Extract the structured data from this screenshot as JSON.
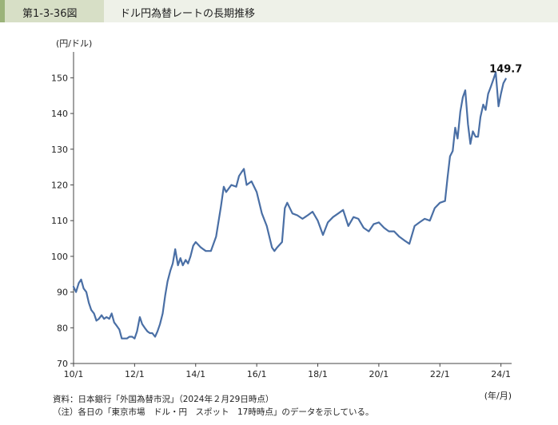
{
  "header": {
    "figure_number": "第1-3-36図",
    "title": "ドル円為替レートの長期推移"
  },
  "source_text": "資料：日本銀行「外国為替市況」（2024年２月29日時点）",
  "note_text": "（注）各日の「東京市場　ドル・円　スポット　17時時点」のデータを示している。",
  "colors": {
    "line": "#4a6fa5",
    "axis": "#444444",
    "header_bg": "#eef1e8",
    "header_tab": "#d7dfc6"
  },
  "chart_data": {
    "type": "line",
    "ylabel": "(円/ドル)",
    "xlabel": "(年/月)",
    "ylim": [
      70,
      155
    ],
    "yticks": [
      70,
      80,
      90,
      100,
      110,
      120,
      130,
      140,
      150
    ],
    "xlim": [
      2010.0,
      2024.35
    ],
    "xticks": [
      {
        "label": "10/1",
        "x": 2010.0
      },
      {
        "label": "12/1",
        "x": 2012.0
      },
      {
        "label": "14/1",
        "x": 2014.0
      },
      {
        "label": "16/1",
        "x": 2016.0
      },
      {
        "label": "18/1",
        "x": 2018.0
      },
      {
        "label": "20/1",
        "x": 2020.0
      },
      {
        "label": "22/1",
        "x": 2022.0
      },
      {
        "label": "24/1",
        "x": 2024.0
      }
    ],
    "grid": false,
    "annotation": {
      "text": "149.7",
      "x": 2024.16,
      "y": 149.7
    },
    "series": [
      {
        "x": [
          2010.0,
          2010.08,
          2010.17,
          2010.25,
          2010.33,
          2010.42,
          2010.5,
          2010.58,
          2010.67,
          2010.75,
          2010.83,
          2010.92,
          2011.0,
          2011.08,
          2011.17,
          2011.25,
          2011.33,
          2011.42,
          2011.5,
          2011.58,
          2011.67,
          2011.75,
          2011.83,
          2011.92,
          2012.0,
          2012.08,
          2012.17,
          2012.25,
          2012.33,
          2012.42,
          2012.5,
          2012.58,
          2012.67,
          2012.75,
          2012.83,
          2012.92,
          2013.0,
          2013.08,
          2013.17,
          2013.25,
          2013.33,
          2013.42,
          2013.5,
          2013.58,
          2013.67,
          2013.75,
          2013.83,
          2013.92,
          2014.0,
          2014.17,
          2014.33,
          2014.5,
          2014.67,
          2014.83,
          2014.92,
          2015.0,
          2015.17,
          2015.33,
          2015.42,
          2015.5,
          2015.58,
          2015.67,
          2015.83,
          2016.0,
          2016.17,
          2016.33,
          2016.5,
          2016.58,
          2016.67,
          2016.83,
          2016.92,
          2017.0,
          2017.17,
          2017.33,
          2017.5,
          2017.67,
          2017.83,
          2018.0,
          2018.17,
          2018.33,
          2018.5,
          2018.67,
          2018.83,
          2019.0,
          2019.17,
          2019.33,
          2019.5,
          2019.67,
          2019.83,
          2020.0,
          2020.17,
          2020.25,
          2020.33,
          2020.5,
          2020.67,
          2020.83,
          2021.0,
          2021.17,
          2021.33,
          2021.5,
          2021.67,
          2021.83,
          2022.0,
          2022.17,
          2022.25,
          2022.33,
          2022.42,
          2022.5,
          2022.58,
          2022.67,
          2022.75,
          2022.83,
          2022.92,
          2023.0,
          2023.08,
          2023.17,
          2023.25,
          2023.33,
          2023.42,
          2023.5,
          2023.58,
          2023.67,
          2023.75,
          2023.83,
          2023.92,
          2024.0,
          2024.08,
          2024.16
        ],
        "values": [
          91.5,
          90.0,
          92.5,
          93.5,
          91.0,
          90.0,
          87.0,
          85.0,
          84.0,
          82.0,
          82.5,
          83.5,
          82.5,
          83.0,
          82.5,
          84.0,
          81.5,
          80.5,
          79.5,
          77.0,
          77.0,
          77.0,
          77.5,
          77.5,
          77.0,
          79.0,
          83.0,
          81.0,
          80.0,
          79.0,
          78.5,
          78.5,
          77.5,
          79.0,
          81.0,
          84.0,
          89.0,
          93.0,
          96.0,
          98.0,
          102.0,
          97.5,
          99.5,
          97.5,
          99.0,
          98.0,
          100.0,
          103.0,
          104.0,
          102.5,
          101.5,
          101.5,
          105.5,
          114.0,
          119.5,
          118.0,
          120.0,
          119.5,
          122.5,
          123.5,
          124.5,
          120.0,
          121.0,
          118.0,
          112.0,
          108.5,
          102.5,
          101.5,
          102.5,
          104.0,
          113.5,
          115.0,
          112.0,
          111.5,
          110.5,
          111.5,
          112.5,
          110.0,
          106.0,
          109.5,
          111.0,
          112.0,
          113.0,
          108.5,
          111.0,
          110.5,
          108.0,
          107.0,
          109.0,
          109.5,
          108.0,
          107.5,
          107.0,
          107.0,
          105.5,
          104.5,
          103.5,
          108.5,
          109.5,
          110.5,
          110.0,
          113.5,
          115.0,
          115.5,
          122.0,
          128.0,
          129.5,
          136.0,
          133.0,
          140.5,
          144.5,
          146.5,
          137.0,
          131.5,
          135.0,
          133.5,
          133.5,
          139.0,
          142.5,
          141.0,
          145.5,
          147.5,
          149.5,
          151.5,
          142.0,
          145.5,
          148.5,
          149.7
        ]
      }
    ]
  }
}
